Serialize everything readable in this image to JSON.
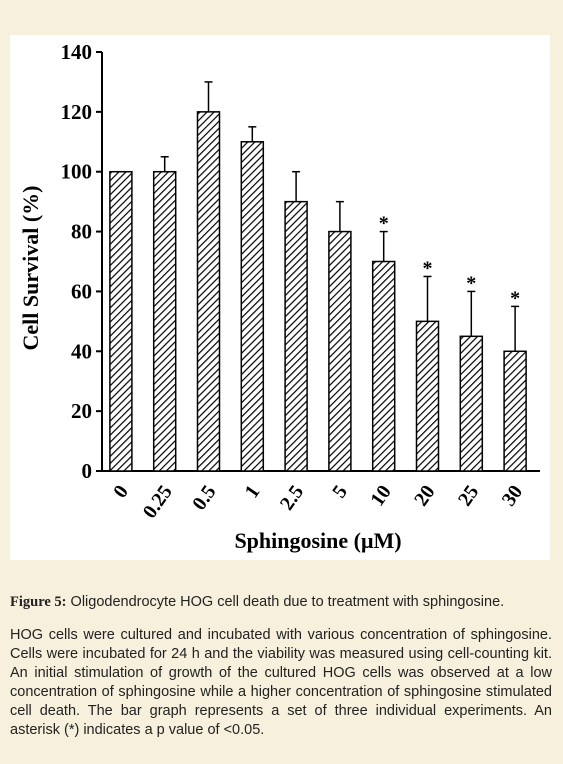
{
  "chart_data": {
    "type": "bar",
    "categories": [
      "0",
      "0.25",
      "0.5",
      "1",
      "2.5",
      "5",
      "10",
      "20",
      "25",
      "30"
    ],
    "values": [
      100,
      100,
      120,
      110,
      90,
      80,
      70,
      50,
      45,
      40
    ],
    "errors": [
      0,
      5,
      10,
      5,
      10,
      10,
      10,
      15,
      15,
      15
    ],
    "significance": [
      null,
      null,
      null,
      null,
      null,
      null,
      "*",
      "*",
      "*",
      "*"
    ],
    "x_label": "Sphingosine (μM)",
    "y_label": "Cell Survival (%)",
    "ylim": [
      0,
      140
    ],
    "yticks": [
      0,
      20,
      40,
      60,
      80,
      100,
      120,
      140
    ],
    "color": "#000000",
    "hatch": true
  },
  "caption": {
    "label": "Figure 5:",
    "title": "Oligodendrocyte HOG cell death due to treatment with sphingosine.",
    "text": "HOG cells were cultured and incubated with various concentration of sphingosine. Cells were incubated for 24 h and the viability was measured using cell-counting kit. An initial stimulation of growth of the cultured HOG cells was observed at a low concentration of sphingosine while a higher concentration of sphingosine stimulated cell death. The bar graph represents a set of three individual experiments. An asterisk (*) indicates a p value of <0.05."
  }
}
